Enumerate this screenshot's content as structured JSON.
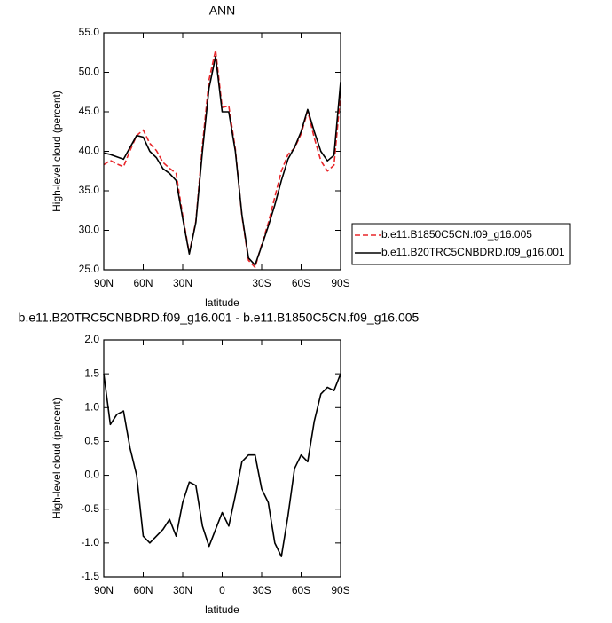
{
  "chart_data": [
    {
      "type": "line",
      "title": "ANN",
      "xlabel": "latitude",
      "ylabel": "High-level cloud (percent)",
      "x": [
        90,
        85,
        80,
        75,
        70,
        65,
        60,
        55,
        50,
        45,
        40,
        35,
        30,
        25,
        20,
        15,
        10,
        5,
        0,
        -5,
        -10,
        -15,
        -20,
        -25,
        -30,
        -35,
        -40,
        -45,
        -50,
        -55,
        -60,
        -65,
        -70,
        -75,
        -80,
        -85,
        -90
      ],
      "xlim": [
        90,
        -90
      ],
      "xticks": [
        {
          "value": 90,
          "label": "90N"
        },
        {
          "value": 60,
          "label": "60N"
        },
        {
          "value": 30,
          "label": "30N"
        },
        {
          "value": -30,
          "label": "30S"
        },
        {
          "value": -60,
          "label": "60S"
        },
        {
          "value": -90,
          "label": "90S"
        }
      ],
      "ylim": [
        25,
        55
      ],
      "yticks": [
        {
          "value": 25,
          "label": "25.0"
        },
        {
          "value": 30,
          "label": "30.0"
        },
        {
          "value": 35,
          "label": "35.0"
        },
        {
          "value": 40,
          "label": "40.0"
        },
        {
          "value": 45,
          "label": "45.0"
        },
        {
          "value": 50,
          "label": "50.0"
        },
        {
          "value": 55,
          "label": "55.0"
        }
      ],
      "legend": "outside-right",
      "series": [
        {
          "name": "b.e11.B1850C5CN.f09_g16.005",
          "color": "#e8262a",
          "dash": true,
          "values": [
            38.3,
            38.85,
            38.4,
            38.05,
            40.1,
            42.0,
            42.7,
            41.0,
            40.1,
            38.6,
            37.85,
            37.2,
            31.9,
            27.1,
            31.15,
            40.75,
            49.05,
            52.8,
            45.55,
            45.75,
            40.3,
            31.8,
            26.2,
            25.3,
            28.2,
            30.9,
            34.2,
            37.5,
            39.6,
            40.4,
            42.2,
            45.1,
            41.7,
            38.8,
            37.5,
            38.25,
            47.3
          ]
        },
        {
          "name": "b.e11.B20TRC5CNBDRD.f09_g16.001",
          "color": "#000000",
          "dash": false,
          "values": [
            39.8,
            39.6,
            39.3,
            39.0,
            40.5,
            42.0,
            41.8,
            40.0,
            39.2,
            37.8,
            37.2,
            36.3,
            31.5,
            27.0,
            31.0,
            40.0,
            48.0,
            52.0,
            45.0,
            45.0,
            40.0,
            32.0,
            26.5,
            25.6,
            28.0,
            30.5,
            33.2,
            36.3,
            39.0,
            40.5,
            42.5,
            45.3,
            42.5,
            40.0,
            38.8,
            39.5,
            48.8
          ]
        }
      ]
    },
    {
      "type": "line",
      "title": "b.e11.B20TRC5CNBDRD.f09_g16.001 - b.e11.B1850C5CN.f09_g16.005",
      "xlabel": "latitude",
      "ylabel": "High-level cloud (percent)",
      "x": [
        90,
        85,
        80,
        75,
        70,
        65,
        60,
        55,
        50,
        45,
        40,
        35,
        30,
        25,
        20,
        15,
        10,
        5,
        0,
        -5,
        -10,
        -15,
        -20,
        -25,
        -30,
        -35,
        -40,
        -45,
        -50,
        -55,
        -60,
        -65,
        -70,
        -75,
        -80,
        -85,
        -90
      ],
      "xlim": [
        90,
        -90
      ],
      "xticks": [
        {
          "value": 90,
          "label": "90N"
        },
        {
          "value": 60,
          "label": "60N"
        },
        {
          "value": 30,
          "label": "30N"
        },
        0,
        {
          "value": -30,
          "label": "30S"
        },
        {
          "value": -60,
          "label": "60S"
        },
        {
          "value": -90,
          "label": "90S"
        }
      ],
      "ylim": [
        -1.5,
        2.0
      ],
      "yticks": [
        -1.5,
        {
          "value": -1,
          "label": "-1.0"
        },
        -0.5,
        {
          "value": 0,
          "label": "0.0"
        },
        0.5,
        {
          "value": 1,
          "label": "1.0"
        },
        1.5,
        {
          "value": 2,
          "label": "2.0"
        }
      ],
      "series": [
        {
          "color": "#000000",
          "values": [
            1.5,
            0.75,
            0.9,
            0.95,
            0.4,
            0.0,
            -0.9,
            -1.0,
            -0.9,
            -0.8,
            -0.65,
            -0.9,
            -0.4,
            -0.1,
            -0.15,
            -0.75,
            -1.05,
            -0.8,
            -0.55,
            -0.75,
            -0.3,
            0.2,
            0.3,
            0.3,
            -0.2,
            -0.4,
            -1.0,
            -1.2,
            -0.6,
            0.1,
            0.3,
            0.2,
            0.8,
            1.2,
            1.3,
            1.25,
            1.5
          ]
        }
      ]
    }
  ]
}
